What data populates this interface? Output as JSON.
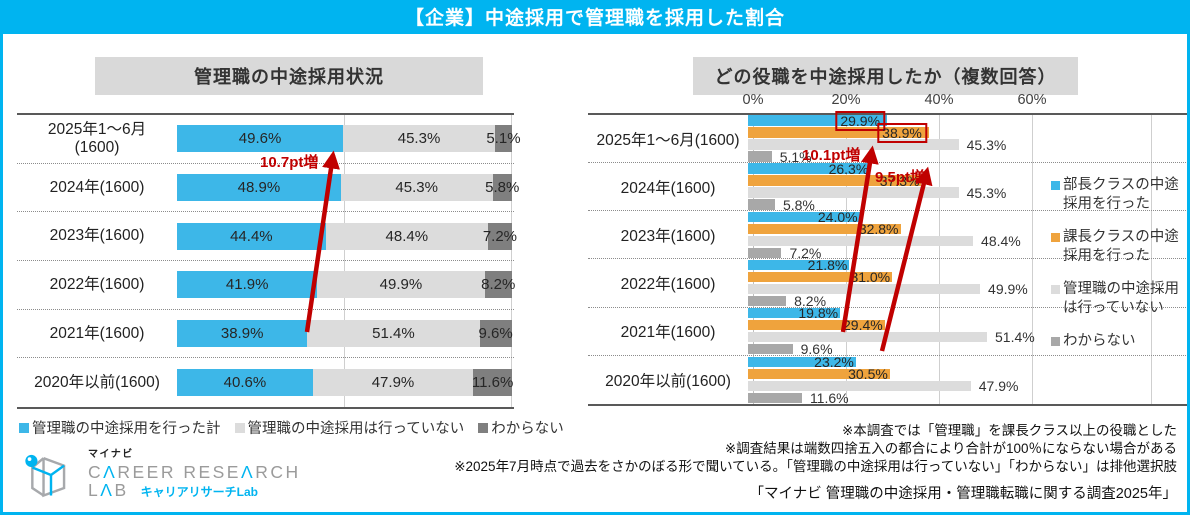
{
  "header": {
    "title": "【企業】中途採用で管理職を採用した割合"
  },
  "left_chart": {
    "title": "管理職の中途採用状況",
    "legend": [
      {
        "label": "管理職の中途採用を行った計",
        "color": "#3DB7E8"
      },
      {
        "label": "管理職の中途採用は行っていない",
        "color": "#DCDCDC"
      },
      {
        "label": "わからない",
        "color": "#7F7F7F"
      }
    ]
  },
  "right_chart": {
    "title": "どの役職を中途採用したか（複数回答）",
    "axis_ticks": [
      "0%",
      "20%",
      "40%",
      "60%"
    ],
    "legend": [
      {
        "label": "部長クラスの中途採用を行った",
        "color": "#3DB7E8"
      },
      {
        "label": "課長クラスの中途採用を行った",
        "color": "#EFA33D"
      },
      {
        "label": "管理職の中途採用は行っていない",
        "color": "#DCDCDC"
      },
      {
        "label": "わからない",
        "color": "#A8A8A8"
      }
    ]
  },
  "annotations": {
    "left": "10.7pt増",
    "right_blue": "10.1pt増",
    "right_orange": "9.5pt増"
  },
  "notes": [
    "※本調査では「管理職」を課長クラス以上の役職とした",
    "※調査結果は端数四捨五入の都合により合計が100％にならない場合がある",
    "※2025年7月時点で過去をさかのぼる形で聞いている。「管理職の中途採用は行っていない」「わからない」は排他選択肢"
  ],
  "source": "「マイナビ 管理職の中途採用・管理職転職に関する調査2025年」",
  "logo": {
    "brand_small": "マイナビ",
    "line1": "CAREER RESEARCH",
    "line2": "LAB",
    "jp": "キャリアリサーチLab"
  },
  "colors": {
    "accent_cyan": "#00B4F0",
    "red": "#C00000",
    "title_box_gray": "#D9D9D9"
  },
  "chart_data": [
    {
      "type": "bar",
      "subtype": "stacked-horizontal-100pct",
      "title": "管理職の中途採用状況",
      "categories": [
        "2025年1～6月\n(1600)",
        "2024年(1600)",
        "2023年(1600)",
        "2022年(1600)",
        "2021年(1600)",
        "2020年以前(1600)"
      ],
      "series": [
        {
          "name": "管理職の中途採用を行った計",
          "color": "#3DB7E8",
          "values": [
            49.6,
            48.9,
            44.4,
            41.9,
            38.9,
            40.6
          ]
        },
        {
          "name": "管理職の中途採用は行っていない",
          "color": "#DCDCDC",
          "values": [
            45.3,
            45.3,
            48.4,
            49.9,
            51.4,
            47.9
          ]
        },
        {
          "name": "わからない",
          "color": "#7F7F7F",
          "values": [
            5.1,
            5.8,
            7.2,
            8.2,
            9.6,
            11.6
          ]
        }
      ],
      "xlim": [
        0,
        100
      ],
      "annotation": "10.7pt増（2021年38.9%→2025年1～6月49.6%）",
      "grid": "50%と100%に縦罫線"
    },
    {
      "type": "bar",
      "subtype": "grouped-horizontal",
      "title": "どの役職を中途採用したか（複数回答）",
      "categories": [
        "2025年1～6月(1600)",
        "2024年(1600)",
        "2023年(1600)",
        "2022年(1600)",
        "2021年(1600)",
        "2020年以前(1600)"
      ],
      "series": [
        {
          "name": "部長クラスの中途採用を行った",
          "color": "#3DB7E8",
          "values": [
            29.9,
            26.3,
            24.0,
            21.8,
            19.8,
            23.2
          ]
        },
        {
          "name": "課長クラスの中途採用を行った",
          "color": "#EFA33D",
          "values": [
            38.9,
            37.3,
            32.8,
            31.0,
            29.4,
            30.5
          ]
        },
        {
          "name": "管理職の中途採用は行っていない",
          "color": "#DCDCDC",
          "values": [
            45.3,
            45.3,
            48.4,
            49.9,
            51.4,
            47.9
          ]
        },
        {
          "name": "わからない",
          "color": "#A8A8A8",
          "values": [
            5.1,
            5.8,
            7.2,
            8.2,
            9.6,
            11.6
          ]
        }
      ],
      "xlim": [
        0,
        60
      ],
      "annotations": [
        "10.1pt増（部長クラス 2021年19.8%→2025年29.9%）",
        "9.5pt増（課長クラス 2021年29.4%→2025年38.9%）"
      ],
      "highlight_boxes": [
        "29.9%",
        "38.9%"
      ],
      "legend_position": "right"
    }
  ]
}
